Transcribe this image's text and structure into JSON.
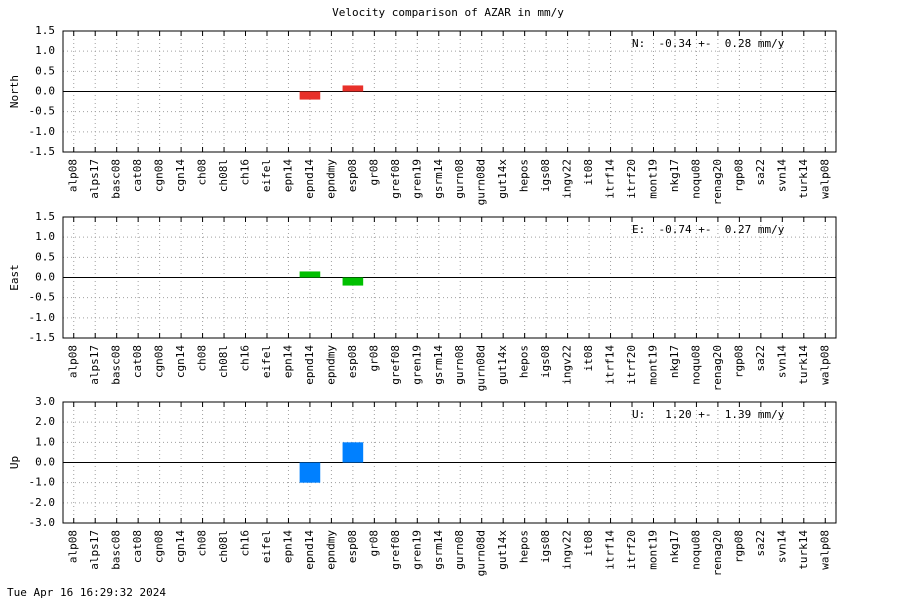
{
  "title": "Velocity comparison of AZAR in mm/y",
  "footer": "Tue Apr 16 16:29:32 2024",
  "chart_data": [
    {
      "type": "bar",
      "ylabel": "North",
      "annotation": "N:  -0.34 +-  0.28 mm/y",
      "color": "#e8302a",
      "categories": [
        "alp08",
        "alps17",
        "basc08",
        "cat08",
        "cgn08",
        "cgn14",
        "ch08",
        "ch08l",
        "ch16",
        "eifel",
        "epn14",
        "epnd14",
        "epndmy",
        "esp08",
        "gr08",
        "gref08",
        "gren19",
        "gsrm14",
        "gurn08",
        "gurn08d",
        "gut14x",
        "hepos",
        "igs08",
        "ingv22",
        "it08",
        "itrf14",
        "itrf20",
        "mont19",
        "nkg17",
        "noqu08",
        "renag20",
        "rgp08",
        "sa22",
        "svn14",
        "turk14",
        "walp08"
      ],
      "values": [
        null,
        null,
        null,
        null,
        null,
        null,
        null,
        null,
        null,
        null,
        null,
        -0.2,
        null,
        0.15,
        null,
        null,
        null,
        null,
        null,
        null,
        null,
        null,
        null,
        null,
        null,
        null,
        null,
        null,
        null,
        null,
        null,
        null,
        null,
        null,
        null,
        null
      ],
      "ylim": [
        -1.5,
        1.5
      ],
      "yticks": [
        {
          "value": -1.5,
          "label": "-1.5"
        },
        {
          "value": -1,
          "label": "-1.0"
        },
        {
          "value": -0.5,
          "label": "-0.5"
        },
        {
          "value": 0,
          "label": "0.0"
        },
        {
          "value": 0.5,
          "label": "0.5"
        },
        {
          "value": 1,
          "label": "1.0"
        },
        {
          "value": 1.5,
          "label": "1.5"
        }
      ],
      "grid": true
    },
    {
      "type": "bar",
      "ylabel": "East",
      "annotation": "E:  -0.74 +-  0.27 mm/y",
      "color": "#00c000",
      "categories": [
        "alp08",
        "alps17",
        "basc08",
        "cat08",
        "cgn08",
        "cgn14",
        "ch08",
        "ch08l",
        "ch16",
        "eifel",
        "epn14",
        "epnd14",
        "epndmy",
        "esp08",
        "gr08",
        "gref08",
        "gren19",
        "gsrm14",
        "gurn08",
        "gurn08d",
        "gut14x",
        "hepos",
        "igs08",
        "ingv22",
        "it08",
        "itrf14",
        "itrf20",
        "mont19",
        "nkg17",
        "noqu08",
        "renag20",
        "rgp08",
        "sa22",
        "svn14",
        "turk14",
        "walp08"
      ],
      "values": [
        null,
        null,
        null,
        null,
        null,
        null,
        null,
        null,
        null,
        null,
        null,
        0.15,
        null,
        -0.2,
        null,
        null,
        null,
        null,
        null,
        null,
        null,
        null,
        null,
        null,
        null,
        null,
        null,
        null,
        null,
        null,
        null,
        null,
        null,
        null,
        null,
        null
      ],
      "ylim": [
        -1.5,
        1.5
      ],
      "yticks": [
        {
          "value": -1.5,
          "label": "-1.5"
        },
        {
          "value": -1,
          "label": "-1.0"
        },
        {
          "value": -0.5,
          "label": "-0.5"
        },
        {
          "value": 0,
          "label": "0.0"
        },
        {
          "value": 0.5,
          "label": "0.5"
        },
        {
          "value": 1,
          "label": "1.0"
        },
        {
          "value": 1.5,
          "label": "1.5"
        }
      ],
      "grid": true
    },
    {
      "type": "bar",
      "ylabel": "Up",
      "annotation": "U:   1.20 +-  1.39 mm/y",
      "color": "#0080ff",
      "categories": [
        "alp08",
        "alps17",
        "basc08",
        "cat08",
        "cgn08",
        "cgn14",
        "ch08",
        "ch08l",
        "ch16",
        "eifel",
        "epn14",
        "epnd14",
        "epndmy",
        "esp08",
        "gr08",
        "gref08",
        "gren19",
        "gsrm14",
        "gurn08",
        "gurn08d",
        "gut14x",
        "hepos",
        "igs08",
        "ingv22",
        "it08",
        "itrf14",
        "itrf20",
        "mont19",
        "nkg17",
        "noqu08",
        "renag20",
        "rgp08",
        "sa22",
        "svn14",
        "turk14",
        "walp08"
      ],
      "values": [
        null,
        null,
        null,
        null,
        null,
        null,
        null,
        null,
        null,
        null,
        null,
        -1.0,
        null,
        1.0,
        null,
        null,
        null,
        null,
        null,
        null,
        null,
        null,
        null,
        null,
        null,
        null,
        null,
        null,
        null,
        null,
        null,
        null,
        null,
        null,
        null,
        null
      ],
      "ylim": [
        -3,
        3
      ],
      "yticks": [
        {
          "value": -3,
          "label": "-3.0"
        },
        {
          "value": -2,
          "label": "-2.0"
        },
        {
          "value": -1,
          "label": "-1.0"
        },
        {
          "value": 0,
          "label": "0.0"
        },
        {
          "value": 1,
          "label": "1.0"
        },
        {
          "value": 2,
          "label": "2.0"
        },
        {
          "value": 3,
          "label": "3.0"
        }
      ],
      "grid": true
    }
  ]
}
